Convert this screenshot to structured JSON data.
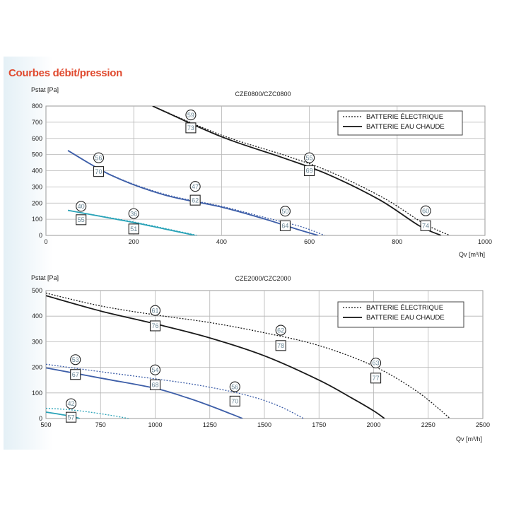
{
  "page": {
    "title": "Courbes débit/pression"
  },
  "chart_data": [
    {
      "type": "line",
      "title": "CZE0800/CZC0800",
      "xlabel": "Qv [m³/h]",
      "ylabel": "Pstat [Pa]",
      "xlim": [
        0,
        1000
      ],
      "ylim": [
        0,
        800
      ],
      "xticks": [
        "0",
        "200",
        "400",
        "600",
        "800",
        "1000"
      ],
      "yticks": [
        "0",
        "100",
        "200",
        "300",
        "400",
        "500",
        "600",
        "700",
        "800"
      ],
      "grid": true,
      "legend_position": "top-right",
      "legend": [
        {
          "label": "BATTERIE ÉLECTRIQUE",
          "style": "dotted"
        },
        {
          "label": "BATTERIE EAU CHAUDE",
          "style": "solid"
        }
      ],
      "series": [
        {
          "color": "#1a1a1a",
          "style": "solid",
          "x": [
            243,
            400,
            540,
            640,
            760,
            850,
            900
          ],
          "y": [
            800,
            610,
            480,
            380,
            220,
            60,
            0
          ]
        },
        {
          "color": "#1a1a1a",
          "style": "dotted",
          "x": [
            243,
            400,
            550,
            650,
            770,
            860,
            920
          ],
          "y": [
            800,
            620,
            490,
            390,
            230,
            75,
            0
          ]
        },
        {
          "color": "#3d5ea8",
          "style": "solid",
          "x": [
            50,
            150,
            270,
            400,
            500,
            570,
            620
          ],
          "y": [
            525,
            370,
            250,
            175,
            100,
            40,
            0
          ]
        },
        {
          "color": "#3d5ea8",
          "style": "dotted",
          "x": [
            50,
            150,
            270,
            400,
            500,
            580,
            635
          ],
          "y": [
            525,
            372,
            255,
            180,
            110,
            55,
            0
          ]
        },
        {
          "color": "#2aa3b8",
          "style": "solid",
          "x": [
            50,
            120,
            200,
            270,
            340
          ],
          "y": [
            155,
            120,
            80,
            40,
            0
          ]
        },
        {
          "color": "#2aa3b8",
          "style": "dotted",
          "x": [
            50,
            120,
            200,
            270,
            345
          ],
          "y": [
            155,
            122,
            83,
            44,
            0
          ]
        }
      ],
      "markers": [
        {
          "kind": "circle",
          "label": "59",
          "x": 330,
          "y": 745
        },
        {
          "kind": "square",
          "label": "73",
          "x": 330,
          "y": 665
        },
        {
          "kind": "circle",
          "label": "55",
          "x": 600,
          "y": 480
        },
        {
          "kind": "square",
          "label": "69",
          "x": 600,
          "y": 400
        },
        {
          "kind": "circle",
          "label": "60",
          "x": 865,
          "y": 152
        },
        {
          "kind": "square",
          "label": "74",
          "x": 865,
          "y": 60
        },
        {
          "kind": "circle",
          "label": "56",
          "x": 120,
          "y": 480
        },
        {
          "kind": "square",
          "label": "70",
          "x": 120,
          "y": 395
        },
        {
          "kind": "circle",
          "label": "47",
          "x": 340,
          "y": 303
        },
        {
          "kind": "square",
          "label": "62",
          "x": 340,
          "y": 218
        },
        {
          "kind": "circle",
          "label": "50",
          "x": 545,
          "y": 150
        },
        {
          "kind": "square",
          "label": "64",
          "x": 545,
          "y": 60
        },
        {
          "kind": "circle",
          "label": "40",
          "x": 80,
          "y": 180
        },
        {
          "kind": "square",
          "label": "55",
          "x": 80,
          "y": 97
        },
        {
          "kind": "circle",
          "label": "36",
          "x": 200,
          "y": 135
        },
        {
          "kind": "square",
          "label": "51",
          "x": 200,
          "y": 40
        }
      ]
    },
    {
      "type": "line",
      "title": "CZE2000/CZC2000",
      "xlabel": "Qv [m³/h]",
      "ylabel": "Pstat [Pa]",
      "xlim": [
        500,
        2500
      ],
      "ylim": [
        0,
        500
      ],
      "xticks": [
        "500",
        "750",
        "1000",
        "1250",
        "1500",
        "1750",
        "2000",
        "2250",
        "2500"
      ],
      "yticks": [
        "0",
        "100",
        "200",
        "300",
        "400",
        "500"
      ],
      "grid": true,
      "legend_position": "top-right",
      "legend": [
        {
          "label": "BATTERIE ÉLECTRIQUE",
          "style": "dotted"
        },
        {
          "label": "BATTERIE EAU CHAUDE",
          "style": "solid"
        }
      ],
      "series": [
        {
          "color": "#1a1a1a",
          "style": "solid",
          "x": [
            500,
            750,
            1000,
            1250,
            1500,
            1750,
            1900,
            2000,
            2050
          ],
          "y": [
            480,
            420,
            370,
            315,
            245,
            150,
            80,
            30,
            0
          ]
        },
        {
          "color": "#1a1a1a",
          "style": "dotted",
          "x": [
            500,
            750,
            1000,
            1250,
            1500,
            1750,
            2000,
            2200,
            2350
          ],
          "y": [
            490,
            440,
            405,
            375,
            335,
            285,
            205,
            105,
            0
          ]
        },
        {
          "color": "#3d5ea8",
          "style": "solid",
          "x": [
            500,
            750,
            1000,
            1150,
            1250,
            1350,
            1400
          ],
          "y": [
            198,
            158,
            118,
            80,
            50,
            17,
            0
          ]
        },
        {
          "color": "#3d5ea8",
          "style": "dotted",
          "x": [
            500,
            750,
            1000,
            1200,
            1400,
            1550,
            1680
          ],
          "y": [
            212,
            183,
            155,
            130,
            95,
            55,
            0
          ]
        },
        {
          "color": "#2aa3b8",
          "style": "solid",
          "x": [
            500,
            560,
            620,
            655
          ],
          "y": [
            25,
            17,
            8,
            0
          ]
        },
        {
          "color": "#2aa3b8",
          "style": "dotted",
          "x": [
            500,
            600,
            700,
            800,
            880
          ],
          "y": [
            40,
            35,
            25,
            12,
            0
          ]
        }
      ],
      "markers": [
        {
          "kind": "circle",
          "label": "61",
          "x": 1000,
          "y": 422
        },
        {
          "kind": "square",
          "label": "76",
          "x": 1000,
          "y": 362
        },
        {
          "kind": "circle",
          "label": "62",
          "x": 1575,
          "y": 345
        },
        {
          "kind": "square",
          "label": "78",
          "x": 1575,
          "y": 285
        },
        {
          "kind": "circle",
          "label": "63",
          "x": 2010,
          "y": 217
        },
        {
          "kind": "square",
          "label": "77",
          "x": 2010,
          "y": 158
        },
        {
          "kind": "circle",
          "label": "53",
          "x": 635,
          "y": 230
        },
        {
          "kind": "square",
          "label": "67",
          "x": 635,
          "y": 172
        },
        {
          "kind": "circle",
          "label": "54",
          "x": 1000,
          "y": 190
        },
        {
          "kind": "square",
          "label": "68",
          "x": 1000,
          "y": 132
        },
        {
          "kind": "circle",
          "label": "56",
          "x": 1365,
          "y": 124
        },
        {
          "kind": "square",
          "label": "70",
          "x": 1365,
          "y": 68
        },
        {
          "kind": "circle",
          "label": "42",
          "x": 615,
          "y": 58
        },
        {
          "kind": "square",
          "label": "57",
          "x": 615,
          "y": 5
        }
      ]
    }
  ]
}
